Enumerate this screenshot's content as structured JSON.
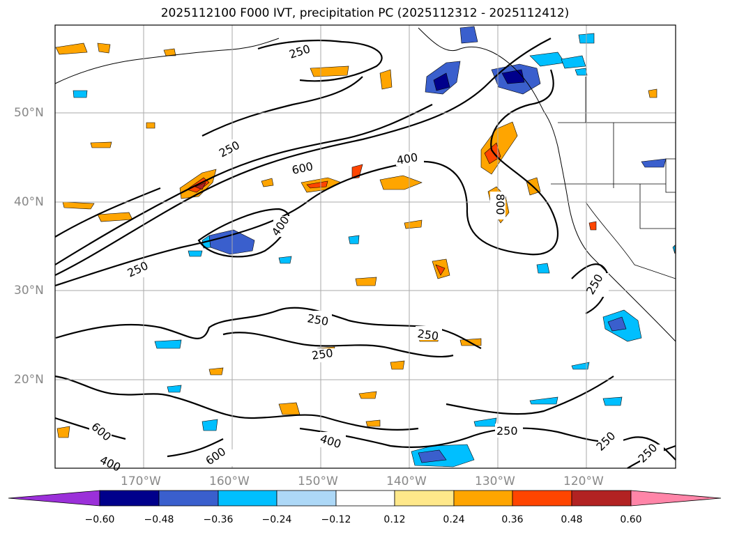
{
  "title": "2025112100 F000 IVT, precipitation PC (2025112312 - 2025112412)",
  "lat_labels": [
    "50°N",
    "40°N",
    "30°N",
    "20°N"
  ],
  "lon_labels": [
    "170°W",
    "160°W",
    "150°W",
    "140°W",
    "130°W",
    "120°W"
  ],
  "contour_labels": [
    "250",
    "250",
    "600",
    "400",
    "400",
    "250",
    "800",
    "250",
    "250",
    "250",
    "250",
    "250",
    "400",
    "600",
    "400",
    "600",
    "250",
    "250"
  ],
  "colorbar": {
    "ticks": [
      "−0.60",
      "−0.48",
      "−0.36",
      "−0.24",
      "−0.12",
      "0.12",
      "0.24",
      "0.36",
      "0.48",
      "0.60"
    ],
    "colors": [
      "#9b30d9",
      "#00008b",
      "#3a5fcd",
      "#00bfff",
      "#add8f7",
      "#ffffff",
      "#ffe88a",
      "#ffa500",
      "#ff4500",
      "#b22222",
      "#ff85a8"
    ]
  }
}
